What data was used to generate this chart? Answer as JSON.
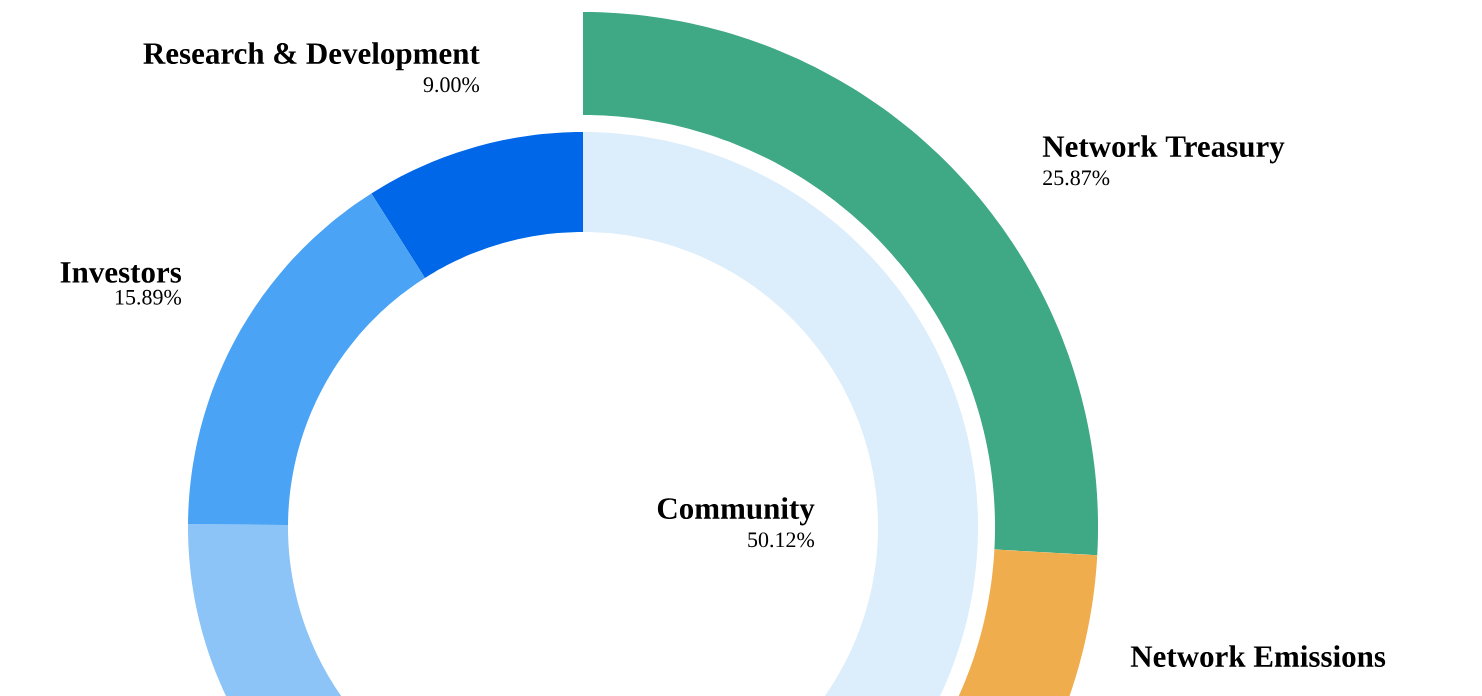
{
  "chart_data": [
    {
      "type": "donut",
      "categories": [
        "Community",
        null,
        "Investors",
        "Research & Development"
      ],
      "values": [
        50.12,
        24.99,
        15.89,
        9.0
      ],
      "value_labels": [
        "50.12%",
        null,
        "15.89%",
        "9.00%"
      ],
      "colors": [
        "#dceefb",
        "#8cc4f8",
        "#4aa3f5",
        "#0068e8"
      ]
    },
    {
      "type": "donut",
      "categories": [
        "Network Treasury",
        "Network Emissions"
      ],
      "values": [
        25.87,
        24.25
      ],
      "value_labels": [
        "25.87%",
        null
      ],
      "colors": [
        "#3fa884",
        "#f0ad4e"
      ]
    }
  ]
}
